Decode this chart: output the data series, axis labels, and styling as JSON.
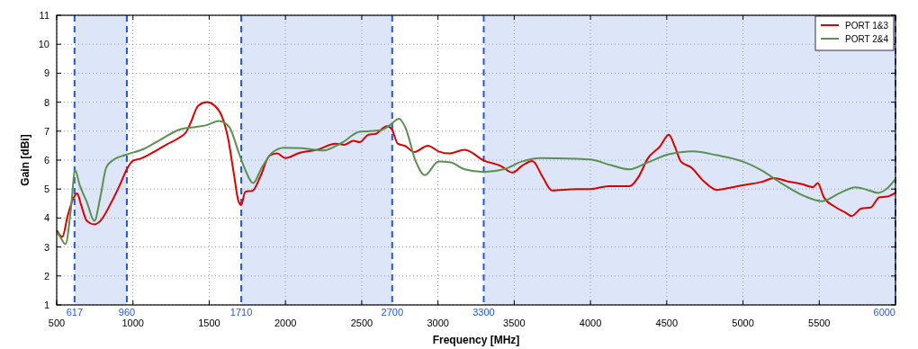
{
  "chart_data": {
    "type": "line",
    "xlabel": "Frequency [MHz]",
    "ylabel": "Gain [dBi]",
    "xlim": [
      500,
      6000
    ],
    "ylim": [
      1,
      11
    ],
    "xticks": [
      500,
      1000,
      1500,
      2000,
      2500,
      3000,
      3500,
      4000,
      4500,
      5000,
      5500,
      {
        "value": 6000,
        "label": null
      }
    ],
    "yticks": [
      1,
      2,
      3,
      4,
      5,
      6,
      7,
      8,
      9,
      10,
      11
    ],
    "grid": true,
    "legend": "top right",
    "line_style": "solid",
    "marker": "none",
    "bands": [
      {
        "axis": "x",
        "from": 617,
        "to": 960,
        "color": "#dce6f8"
      },
      {
        "axis": "x",
        "from": 1710,
        "to": 2700,
        "color": "#dce6f8"
      },
      {
        "axis": "x",
        "from": 3300,
        "to": 6000,
        "color": "#dce6f8"
      }
    ],
    "ref_lines": [
      {
        "axis": "x",
        "value": 617,
        "label": "617",
        "color": "#2255ee",
        "line_style": "dashed"
      },
      {
        "axis": "x",
        "value": 960,
        "label": "960",
        "color": "#2255ee",
        "line_style": "dashed"
      },
      {
        "axis": "x",
        "value": 1710,
        "label": "1710",
        "color": "#2255ee",
        "line_style": "dashed"
      },
      {
        "axis": "x",
        "value": 2700,
        "label": "2700",
        "color": "#2255ee",
        "line_style": "dashed"
      },
      {
        "axis": "x",
        "value": 3300,
        "label": "3300",
        "color": "#2255ee",
        "line_style": "dashed"
      },
      {
        "axis": "x",
        "value": 6000,
        "label": "6000",
        "color": "#2255ee",
        "line_style": "dashed"
      }
    ],
    "series": [
      {
        "name": "PORT 1&3",
        "color": "#dd0000",
        "x": [
          504,
          537,
          572,
          611,
          634,
          660,
          698,
          747,
          786,
          854,
          912,
          961,
          1000,
          1049,
          1126,
          1224,
          1302,
          1350,
          1379,
          1428,
          1486,
          1535,
          1584,
          1623,
          1661,
          1691,
          1710,
          1736,
          1786,
          1835,
          1895,
          1945,
          2000,
          2090,
          2210,
          2327,
          2387,
          2446,
          2486,
          2545,
          2587,
          2666,
          2696,
          2736,
          2785,
          2845,
          2934,
          3004,
          3073,
          3175,
          3300,
          3410,
          3490,
          3550,
          3619,
          3688,
          3747,
          3905,
          4000,
          4118,
          4256,
          4316,
          4375,
          4455,
          4514,
          4553,
          4593,
          4662,
          4741,
          4830,
          4907,
          5006,
          5125,
          5204,
          5283,
          5382,
          5460,
          5490,
          5530,
          5599,
          5668,
          5712,
          5777,
          5836,
          5895,
          5945,
          6000
        ],
        "values": [
          3.55,
          3.35,
          4.08,
          4.7,
          4.85,
          4.45,
          3.9,
          3.78,
          3.9,
          4.5,
          5.12,
          5.7,
          5.98,
          6.05,
          6.25,
          6.55,
          6.77,
          6.98,
          7.3,
          7.88,
          8.0,
          7.88,
          7.5,
          6.77,
          5.55,
          4.6,
          4.45,
          4.9,
          4.95,
          5.43,
          6.15,
          6.23,
          6.07,
          6.25,
          6.36,
          6.57,
          6.53,
          6.67,
          6.62,
          6.88,
          6.9,
          7.17,
          7.08,
          6.57,
          6.49,
          6.28,
          6.5,
          6.3,
          6.23,
          6.36,
          5.99,
          5.8,
          5.57,
          5.8,
          5.97,
          5.4,
          4.95,
          5.0,
          5.0,
          5.1,
          5.1,
          5.43,
          6.05,
          6.47,
          6.88,
          6.47,
          5.95,
          5.74,
          5.28,
          4.97,
          5.04,
          5.14,
          5.25,
          5.38,
          5.28,
          5.18,
          5.07,
          5.21,
          4.72,
          4.4,
          4.2,
          4.07,
          4.33,
          4.36,
          4.72,
          4.74,
          4.87
        ]
      },
      {
        "name": "PORT 2&4",
        "color": "#5a9050",
        "x": [
          504,
          523,
          558,
          591,
          621,
          650,
          698,
          747,
          786,
          825,
          864,
          951,
          1068,
          1185,
          1302,
          1418,
          1477,
          1564,
          1632,
          1691,
          1730,
          1788,
          1846,
          1911,
          1990,
          2109,
          2248,
          2367,
          2486,
          2625,
          2685,
          2745,
          2785,
          2855,
          2914,
          3004,
          3083,
          3175,
          3300,
          3430,
          3549,
          3668,
          3905,
          4000,
          4138,
          4256,
          4375,
          4514,
          4671,
          4829,
          5000,
          5125,
          5243,
          5401,
          5519,
          5638,
          5737,
          5816,
          5885,
          5945,
          6000
        ],
        "values": [
          3.5,
          3.35,
          3.1,
          4.2,
          5.65,
          5.15,
          4.55,
          3.9,
          4.72,
          5.75,
          5.98,
          6.18,
          6.38,
          6.72,
          7.05,
          7.15,
          7.2,
          7.35,
          7.14,
          6.3,
          5.75,
          5.21,
          5.75,
          6.25,
          6.43,
          6.41,
          6.33,
          6.59,
          6.98,
          7.03,
          7.21,
          7.43,
          7.14,
          5.95,
          5.48,
          5.95,
          5.92,
          5.68,
          5.59,
          5.68,
          5.95,
          6.07,
          6.05,
          6.02,
          5.82,
          5.68,
          5.92,
          6.2,
          6.3,
          6.17,
          5.95,
          5.64,
          5.23,
          4.76,
          4.58,
          4.87,
          5.06,
          4.97,
          4.87,
          5.02,
          5.35
        ]
      }
    ]
  }
}
